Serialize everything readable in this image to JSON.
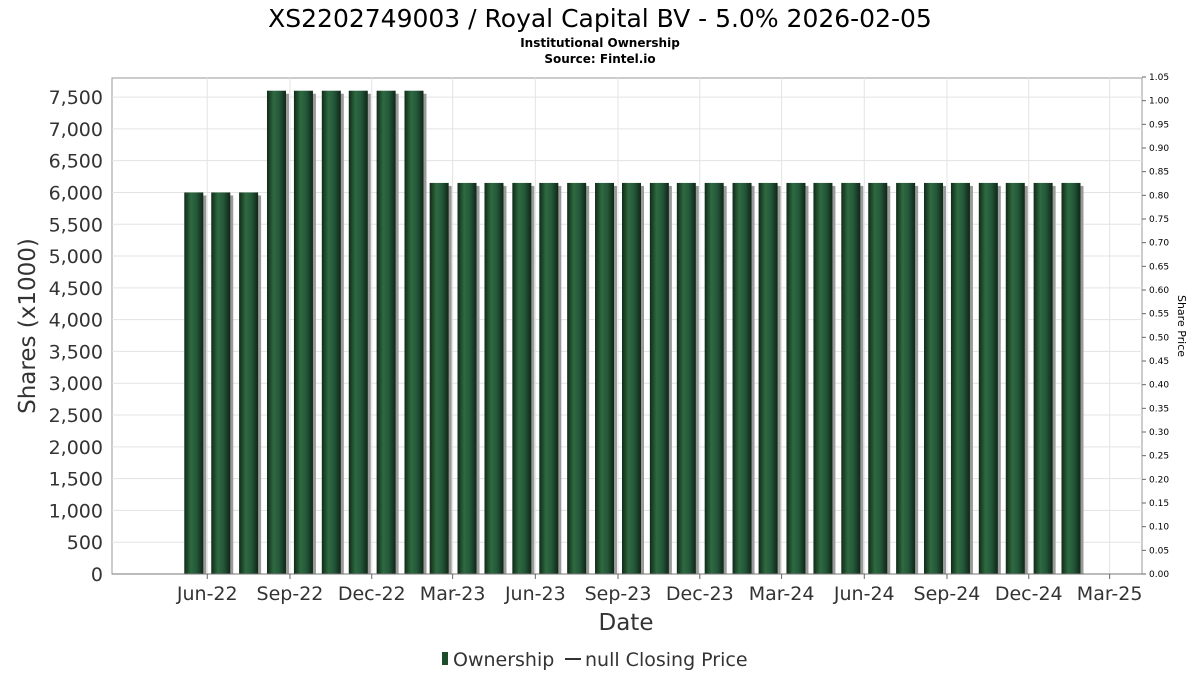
{
  "chart_data": {
    "type": "bar",
    "title": "XS2202749003 / Royal Capital BV - 5.0% 2026-02-05",
    "subtitle": "Institutional Ownership",
    "source": "Source: Fintel.io",
    "xlabel": "Date",
    "ylabel": "Shares (x1000)",
    "y2label": "Share Price",
    "ylim": [
      0,
      7800
    ],
    "y2lim": [
      0,
      1.05
    ],
    "yticks": [
      "0",
      "500",
      "1,000",
      "1,500",
      "2,000",
      "2,500",
      "3,000",
      "3,500",
      "4,000",
      "4,500",
      "5,000",
      "5,500",
      "6,000",
      "6,500",
      "7,000",
      "7,500"
    ],
    "y2ticks": [
      "0.00",
      "0.05",
      "0.10",
      "0.15",
      "0.20",
      "0.25",
      "0.30",
      "0.35",
      "0.40",
      "0.45",
      "0.50",
      "0.55",
      "0.60",
      "0.65",
      "0.70",
      "0.75",
      "0.80",
      "0.85",
      "0.90",
      "0.95",
      "1.00",
      "1.05"
    ],
    "xticks": [
      "Jun-22",
      "Sep-22",
      "Dec-22",
      "Mar-23",
      "Jun-23",
      "Sep-23",
      "Dec-23",
      "Mar-24",
      "Jun-24",
      "Sep-24",
      "Dec-24",
      "Mar-25"
    ],
    "grid": true,
    "legend_position": "bottom",
    "series": [
      {
        "name": "Ownership",
        "color": "#1f4d2c",
        "dates": [
          "2022-05-31",
          "2022-06-30",
          "2022-07-31",
          "2022-08-31",
          "2022-09-30",
          "2022-10-31",
          "2022-11-30",
          "2022-12-31",
          "2023-01-31",
          "2023-02-28",
          "2023-03-31",
          "2023-04-30",
          "2023-05-31",
          "2023-06-30",
          "2023-07-31",
          "2023-08-31",
          "2023-09-30",
          "2023-10-31",
          "2023-11-30",
          "2023-12-31",
          "2024-01-31",
          "2024-02-29",
          "2024-03-31",
          "2024-04-30",
          "2024-05-31",
          "2024-06-30",
          "2024-07-31",
          "2024-08-31",
          "2024-09-30",
          "2024-10-31",
          "2024-11-30",
          "2024-12-31",
          "2025-01-31"
        ],
        "values": [
          6000,
          6000,
          6000,
          7600,
          7600,
          7600,
          7600,
          7600,
          7600,
          6150,
          6150,
          6150,
          6150,
          6150,
          6150,
          6150,
          6150,
          6150,
          6150,
          6150,
          6150,
          6150,
          6150,
          6150,
          6150,
          6150,
          6150,
          6150,
          6150,
          6150,
          6150,
          6150,
          6150
        ]
      },
      {
        "name": "null Closing Price",
        "color": "#000000",
        "values": []
      }
    ]
  }
}
